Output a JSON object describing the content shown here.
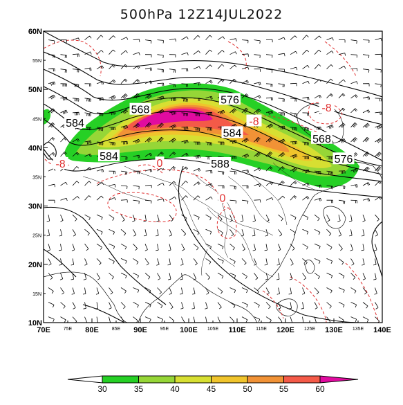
{
  "title": "500hPa   12Z14JUL2022",
  "map": {
    "lon_ticks_major": [
      {
        "lon": 70,
        "label": "70E"
      },
      {
        "lon": 80,
        "label": "80E"
      },
      {
        "lon": 90,
        "label": "90E"
      },
      {
        "lon": 100,
        "label": "100E"
      },
      {
        "lon": 110,
        "label": "110E"
      },
      {
        "lon": 120,
        "label": "120E"
      },
      {
        "lon": 130,
        "label": "130E"
      },
      {
        "lon": 140,
        "label": "140E"
      }
    ],
    "lon_ticks_minor": [
      {
        "lon": 75,
        "label": "75E"
      },
      {
        "lon": 85,
        "label": "85E"
      },
      {
        "lon": 95,
        "label": "95E"
      },
      {
        "lon": 105,
        "label": "105E"
      },
      {
        "lon": 115,
        "label": "115E"
      },
      {
        "lon": 125,
        "label": "125E"
      },
      {
        "lon": 135,
        "label": "135E"
      }
    ],
    "lat_ticks_major": [
      {
        "lat": 10,
        "label": "10N"
      },
      {
        "lat": 20,
        "label": "20N"
      },
      {
        "lat": 30,
        "label": "30N"
      },
      {
        "lat": 40,
        "label": "40N"
      },
      {
        "lat": 50,
        "label": "50N"
      },
      {
        "lat": 60,
        "label": "60N"
      }
    ],
    "lat_ticks_minor": [
      {
        "lat": 15,
        "label": "15N"
      },
      {
        "lat": 25,
        "label": "25N"
      },
      {
        "lat": 35,
        "label": "35N"
      },
      {
        "lat": 45,
        "label": "45N"
      },
      {
        "lat": 55,
        "label": "55N"
      }
    ],
    "height_labels": [
      {
        "text": "568",
        "lon": 90,
        "lat": 46.5
      },
      {
        "text": "576",
        "lon": 108.5,
        "lat": 48.2
      },
      {
        "text": "584",
        "lon": 76.5,
        "lat": 44.2
      },
      {
        "text": "584",
        "lon": 83.5,
        "lat": 38.5
      },
      {
        "text": "584",
        "lon": 109,
        "lat": 42.5
      },
      {
        "text": "588",
        "lon": 106.5,
        "lat": 37.2
      },
      {
        "text": "568",
        "lon": 127.5,
        "lat": 41.5
      },
      {
        "text": "576",
        "lon": 132,
        "lat": 38
      }
    ],
    "temp_labels": [
      {
        "text": "-8",
        "lon": 113.5,
        "lat": 44.5
      },
      {
        "text": "-8",
        "lon": 128.5,
        "lat": 46.8
      },
      {
        "text": "-8",
        "lon": 73.5,
        "lat": 37.2
      },
      {
        "text": "0",
        "lon": 107,
        "lat": 31.3
      },
      {
        "text": "0",
        "lon": 94,
        "lat": 37.3
      }
    ]
  },
  "colorbar": {
    "ticks": [
      "30",
      "35",
      "40",
      "45",
      "50",
      "55",
      "60"
    ],
    "colors": [
      "#26d025",
      "#96d637",
      "#d7df32",
      "#f0c42c",
      "#f19236",
      "#f45a48",
      "#e10ba0"
    ]
  }
}
